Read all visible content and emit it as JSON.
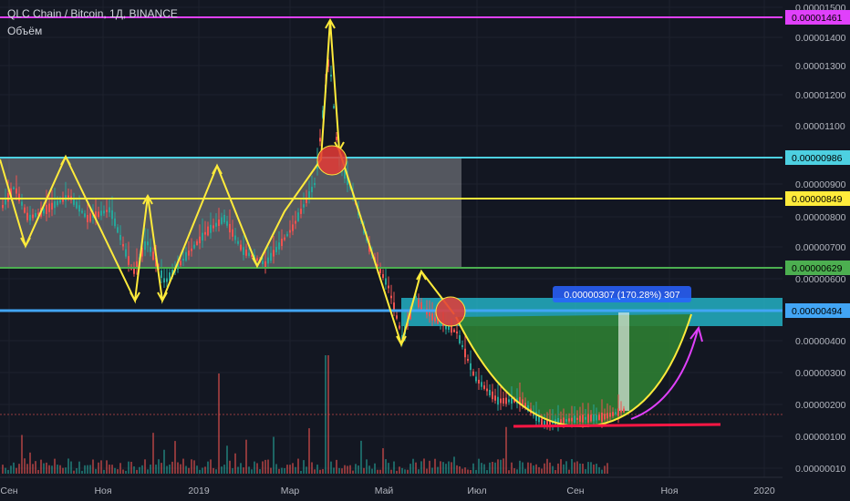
{
  "header": {
    "title": "QLC Chain / Bitcoin, 1Д, BINANCE",
    "volume_label": "Объём"
  },
  "chart_data": {
    "type": "candlestick",
    "title": "QLC Chain / Bitcoin, 1Д, BINANCE",
    "price_axis": {
      "ticks": [
        "0.00001500",
        "0.00001400",
        "0.00001300",
        "0.00001200",
        "0.00001100",
        "0.00000900",
        "0.00000800",
        "0.00000700",
        "0.00000600",
        "0.00000400",
        "0.00000300",
        "0.00000200",
        "0.00000100",
        "0.00000010"
      ],
      "scale": "log"
    },
    "time_axis": {
      "ticks": [
        "Сен",
        "Ноя",
        "2019",
        "Мар",
        "Май",
        "Июл",
        "Сен",
        "Ноя",
        "2020"
      ]
    },
    "level_badges": [
      {
        "value": "0.00001461",
        "color": "#e040fb"
      },
      {
        "value": "0.00000986",
        "color": "#4dd0e1"
      },
      {
        "value": "0.00000849",
        "color": "#ffeb3b"
      },
      {
        "value": "0.00000629",
        "color": "#4caf50"
      },
      {
        "value": "0.00000494",
        "color": "#42a5f5"
      }
    ],
    "measure_label": "0.00000307 (170.28%) 307",
    "colors": {
      "up": "#26a69a",
      "down": "#ef5350",
      "background": "#131722"
    }
  }
}
